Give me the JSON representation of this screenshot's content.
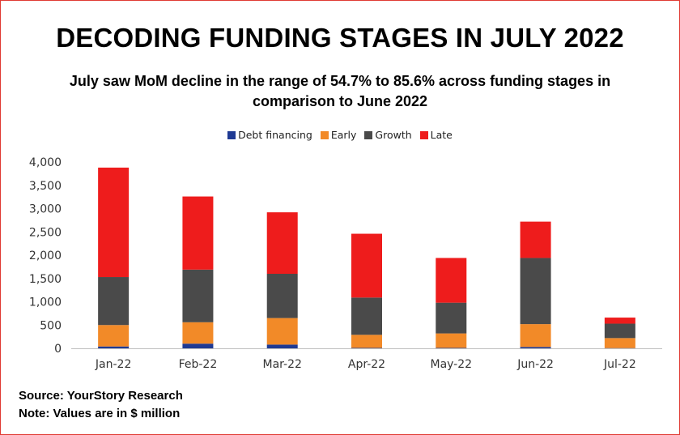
{
  "title": "DECODING FUNDING STAGES IN JULY 2022",
  "subtitle": "July saw MoM decline in the range of 54.7% to 85.6% across funding stages in comparison to June 2022",
  "footer": {
    "source": "Source: YourStory Research",
    "note": "Note: Values are in $ million"
  },
  "colors": {
    "frame": "#e03a33",
    "debt": "#1f3a93",
    "early": "#f28a28",
    "growth": "#4a4a4a",
    "late": "#ee1c1c"
  },
  "chart_data": {
    "type": "bar",
    "stacked": true,
    "categories": [
      "Jan-22",
      "Feb-22",
      "Mar-22",
      "Apr-22",
      "May-22",
      "Jun-22",
      "Jul-22"
    ],
    "series": [
      {
        "name": "Debt financing",
        "color": "#1f3a93",
        "values": [
          40,
          100,
          80,
          10,
          10,
          30,
          5
        ]
      },
      {
        "name": "Early",
        "color": "#f28a28",
        "values": [
          460,
          460,
          570,
          280,
          310,
          490,
          215
        ]
      },
      {
        "name": "Growth",
        "color": "#4a4a4a",
        "values": [
          1030,
          1130,
          950,
          800,
          660,
          1420,
          310
        ]
      },
      {
        "name": "Late",
        "color": "#ee1c1c",
        "values": [
          2350,
          1570,
          1320,
          1370,
          960,
          780,
          130
        ]
      }
    ],
    "y_ticks": [
      "0",
      "500",
      "1,000",
      "1,500",
      "2,000",
      "2,500",
      "3,000",
      "3,500",
      "4,000"
    ],
    "ylim": [
      0,
      4000
    ],
    "grid": false,
    "legend_position": "top-center"
  }
}
